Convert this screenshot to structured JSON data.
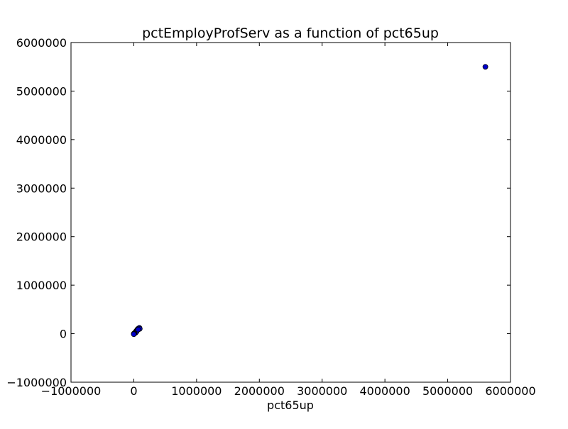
{
  "chart_data": {
    "type": "scatter",
    "title": "pctEmployProfServ as a function of pct65up",
    "xlabel": "pct65up",
    "ylabel": "",
    "xlim": [
      -1000000,
      6000000
    ],
    "ylim": [
      -1000000,
      6000000
    ],
    "xticks": [
      -1000000,
      0,
      1000000,
      2000000,
      3000000,
      4000000,
      5000000,
      6000000
    ],
    "yticks": [
      -1000000,
      0,
      1000000,
      2000000,
      3000000,
      4000000,
      5000000,
      6000000
    ],
    "xtick_labels": [
      "−1000000",
      "0",
      "1000000",
      "2000000",
      "3000000",
      "4000000",
      "5000000",
      "6000000"
    ],
    "ytick_labels": [
      "−1000000",
      "0",
      "1000000",
      "2000000",
      "3000000",
      "4000000",
      "5000000",
      "6000000"
    ],
    "grid": false,
    "marker_color": "#0000cc",
    "marker_edge_color": "#000000",
    "series": [
      {
        "points": [
          [
            0,
            0
          ],
          [
            2000,
            1000
          ],
          [
            5000,
            3000
          ],
          [
            8000,
            6000
          ],
          [
            12000,
            10000
          ],
          [
            15000,
            15000
          ],
          [
            20000,
            20000
          ],
          [
            25000,
            30000
          ],
          [
            30000,
            35000
          ],
          [
            35000,
            45000
          ],
          [
            40000,
            55000
          ],
          [
            45000,
            60000
          ],
          [
            50000,
            70000
          ],
          [
            55000,
            80000
          ],
          [
            60000,
            90000
          ],
          [
            65000,
            95000
          ],
          [
            70000,
            100000
          ],
          [
            75000,
            105000
          ],
          [
            80000,
            110000
          ],
          [
            85000,
            115000
          ],
          [
            90000,
            120000
          ],
          [
            95000,
            100000
          ],
          [
            60000,
            75000
          ],
          [
            40000,
            35000
          ],
          [
            30000,
            20000
          ],
          [
            10000,
            5000
          ],
          [
            5000,
            -5000
          ],
          [
            0,
            -10000
          ],
          [
            70000,
            85000
          ],
          [
            5600000,
            5500000
          ]
        ]
      }
    ]
  }
}
